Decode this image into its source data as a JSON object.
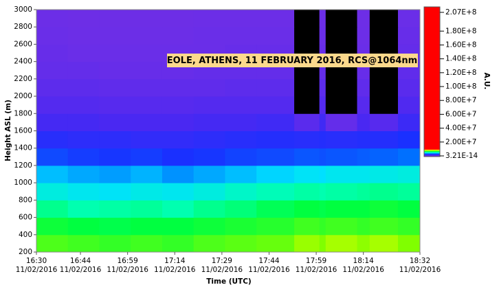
{
  "chart_data": {
    "type": "heatmap",
    "annotation": "EOLE, ATHENS, 11 FEBRUARY 2016, RCS@1064nm",
    "xlabel": "Time (UTC)",
    "ylabel": "Height ASL (m)",
    "colorbar_label": "A.U.",
    "xlim": [
      990,
      1112
    ],
    "xticks": [
      {
        "value": 990,
        "label": "16:30"
      },
      {
        "value": 1004,
        "label": "16:44"
      },
      {
        "value": 1019,
        "label": "16:59"
      },
      {
        "value": 1034,
        "label": "17:14"
      },
      {
        "value": 1049,
        "label": "17:29"
      },
      {
        "value": 1064,
        "label": "17:44"
      },
      {
        "value": 1079,
        "label": "17:59"
      },
      {
        "value": 1094,
        "label": "18:14"
      },
      {
        "value": 1112,
        "label": "18:32"
      }
    ],
    "xtick_sublabels": [
      "11/02/2016",
      "11/02/2016",
      "11/02/2016",
      "11/02/2016",
      "11/02/2016",
      "11/02/2016",
      "11/02/2016",
      "11/02/2016",
      "11/02/2016"
    ],
    "ylim": [
      200,
      3000
    ],
    "yticks": [
      200,
      400,
      600,
      800,
      1000,
      1200,
      1400,
      1600,
      1800,
      2000,
      2200,
      2400,
      2600,
      2800,
      3000
    ],
    "x_edges": [
      990,
      1000,
      1010,
      1020,
      1030,
      1040,
      1050,
      1060,
      1072,
      1080,
      1082,
      1092,
      1096,
      1105,
      1112
    ],
    "y_edges": [
      200,
      400,
      600,
      800,
      1000,
      1200,
      1400,
      1600,
      1800,
      2000,
      2200,
      2400,
      2600,
      2800,
      3000
    ],
    "z": [
      [
        7600000,
        7500000,
        7400000,
        7500000,
        7400000,
        7600000,
        7700000,
        7800000,
        8200000,
        8000000,
        8300000,
        8100000,
        8300000,
        8000000
      ],
      [
        7100000,
        7000000,
        6900000,
        7000000,
        7000000,
        7100000,
        7200000,
        7300000,
        7500000,
        7400000,
        7500000,
        7400000,
        7500000,
        7400000
      ],
      [
        6300000,
        6000000,
        6100000,
        6200000,
        6000000,
        6300000,
        6500000,
        6800000,
        7000000,
        6900000,
        7000000,
        7000000,
        7100000,
        7000000
      ],
      [
        5400000,
        5200000,
        5100000,
        5300000,
        5200000,
        5400000,
        5700000,
        5900000,
        6100000,
        6000000,
        6100000,
        6200000,
        6300000,
        6200000
      ],
      [
        4700000,
        4500000,
        4400000,
        4600000,
        4300000,
        4500000,
        4700000,
        4900000,
        5100000,
        5000000,
        5200000,
        5200000,
        5300000,
        5400000
      ],
      [
        3400000,
        3200000,
        3100000,
        3200000,
        3000000,
        3100000,
        3300000,
        3400000,
        3600000,
        3500000,
        3600000,
        3700000,
        3800000,
        4000000
      ],
      [
        2700000,
        2600000,
        2600000,
        2500000,
        2500000,
        2600000,
        2700000,
        2800000,
        2700000,
        2800000,
        2700000,
        2800000,
        2800000,
        3000000
      ],
      [
        2100000,
        2100000,
        2000000,
        2000000,
        2000000,
        2100000,
        2100000,
        2200000,
        1500000,
        2200000,
        1200000,
        2000000,
        1600000,
        2300000
      ],
      [
        1700000,
        1700000,
        1600000,
        1600000,
        1600000,
        1700000,
        1700000,
        1700000,
        null,
        1700000,
        null,
        1600000,
        null,
        1800000
      ],
      [
        1400000,
        1400000,
        1300000,
        1300000,
        1300000,
        1300000,
        1400000,
        1400000,
        null,
        1400000,
        null,
        1300000,
        null,
        1500000
      ],
      [
        1200000,
        1200000,
        1100000,
        1100000,
        1100000,
        1200000,
        1200000,
        1200000,
        null,
        1200000,
        null,
        1100000,
        null,
        1300000
      ],
      [
        1100000,
        1000000,
        1000000,
        1000000,
        1000000,
        1000000,
        1100000,
        1100000,
        null,
        1100000,
        null,
        1000000,
        null,
        1200000
      ],
      [
        1000000,
        900000,
        900000,
        900000,
        900000,
        1000000,
        1000000,
        1000000,
        null,
        1000000,
        null,
        900000,
        null,
        1100000
      ],
      [
        900000,
        800000,
        800000,
        800000,
        800000,
        900000,
        900000,
        900000,
        null,
        900000,
        null,
        800000,
        null,
        1000000
      ]
    ],
    "null_color": "#000000",
    "zlim": [
      3.21e-14,
      207000000
    ],
    "zticks": [
      {
        "value": 207000000,
        "label": "2.07E+8"
      },
      {
        "value": 180000000,
        "label": "1.80E+8"
      },
      {
        "value": 160000000,
        "label": "1.60E+8"
      },
      {
        "value": 140000000,
        "label": "1.40E+8"
      },
      {
        "value": 120000000,
        "label": "1.20E+8"
      },
      {
        "value": 100000000,
        "label": "1.00E+8"
      },
      {
        "value": 80000000,
        "label": "8.00E+7"
      },
      {
        "value": 60000000,
        "label": "6.00E+7"
      },
      {
        "value": 40000000,
        "label": "4.00E+7"
      },
      {
        "value": 20000000,
        "label": "2.00E+7"
      },
      {
        "value": 3.21e-14,
        "label": "3.21E-14"
      }
    ],
    "colorscale": [
      [
        0,
        "#7a30e0"
      ],
      [
        1000000,
        "#6a2ee8"
      ],
      [
        2000000,
        "#4a28f2"
      ],
      [
        3000000,
        "#1a30ff"
      ],
      [
        4000000,
        "#0070ff"
      ],
      [
        5000000,
        "#00e0ff"
      ],
      [
        6000000,
        "#00ffb0"
      ],
      [
        7000000,
        "#00ff40"
      ],
      [
        8000000,
        "#80ff00"
      ],
      [
        9000000,
        "#ffff00"
      ],
      [
        10000000,
        "#ff0000"
      ],
      [
        207000000,
        "#ff0000"
      ]
    ]
  }
}
